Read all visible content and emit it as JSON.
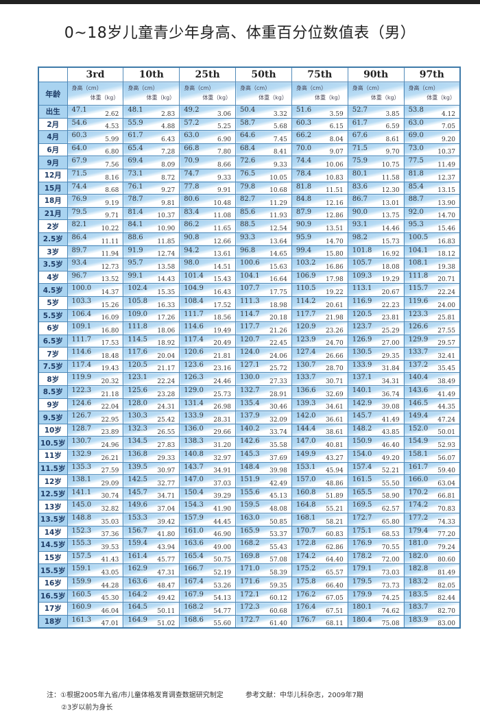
{
  "title": "0~18岁儿童青少年身高、体重百分位数值表（男）",
  "table": {
    "age_header": "年龄",
    "percentiles": [
      "3rd",
      "10th",
      "25th",
      "50th",
      "75th",
      "90th",
      "97th"
    ],
    "height_label": "身高（cm）",
    "weight_label": "体重（kg）",
    "rows": [
      [
        "出生",
        "47.1",
        "2.62",
        "48.1",
        "2.83",
        "49.2",
        "3.06",
        "50.4",
        "3.32",
        "51.6",
        "3.59",
        "52.7",
        "3.85",
        "53.8",
        "4.12"
      ],
      [
        "2月",
        "54.6",
        "4.53",
        "55.9",
        "4.88",
        "57.2",
        "5.25",
        "58.7",
        "5.68",
        "60.3",
        "6.15",
        "61.7",
        "6.59",
        "63.0",
        "7.05"
      ],
      [
        "4月",
        "60.3",
        "5.99",
        "61.7",
        "6.43",
        "63.0",
        "6.90",
        "64.6",
        "7.45",
        "66.2",
        "8.04",
        "67.6",
        "8.61",
        "69.0",
        "9.20"
      ],
      [
        "6月",
        "64.0",
        "6.80",
        "65.4",
        "7.28",
        "66.8",
        "7.80",
        "68.4",
        "8.41",
        "70.0",
        "9.07",
        "71.5",
        "9.70",
        "73.0",
        "10.37"
      ],
      [
        "9月",
        "67.9",
        "7.56",
        "69.4",
        "8.09",
        "70.9",
        "8.66",
        "72.6",
        "9.33",
        "74.4",
        "10.06",
        "75.9",
        "10.75",
        "77.5",
        "11.49"
      ],
      [
        "12月",
        "71.5",
        "8.16",
        "73.1",
        "8.72",
        "74.7",
        "9.33",
        "76.5",
        "10.05",
        "78.4",
        "10.83",
        "80.1",
        "11.58",
        "81.8",
        "12.37"
      ],
      [
        "15月",
        "74.4",
        "8.68",
        "76.1",
        "9.27",
        "77.8",
        "9.91",
        "79.8",
        "10.68",
        "81.8",
        "11.51",
        "83.6",
        "12.30",
        "85.4",
        "13.15"
      ],
      [
        "18月",
        "76.9",
        "9.19",
        "78.7",
        "9.81",
        "80.6",
        "10.48",
        "82.7",
        "11.29",
        "84.8",
        "12.16",
        "86.7",
        "13.01",
        "88.7",
        "13.90"
      ],
      [
        "21月",
        "79.5",
        "9.71",
        "81.4",
        "10.37",
        "83.4",
        "11.08",
        "85.6",
        "11.93",
        "87.9",
        "12.86",
        "90.0",
        "13.75",
        "92.0",
        "14.70"
      ],
      [
        "2岁",
        "82.1",
        "10.22",
        "84.1",
        "10.90",
        "86.2",
        "11.65",
        "88.5",
        "12.54",
        "90.9",
        "13.51",
        "93.1",
        "14.46",
        "95.3",
        "15.46"
      ],
      [
        "2.5岁",
        "86.4",
        "11.11",
        "88.6",
        "11.85",
        "90.8",
        "12.66",
        "93.3",
        "13.64",
        "95.9",
        "14.70",
        "98.2",
        "15.73",
        "100.5",
        "16.83"
      ],
      [
        "3岁",
        "89.7",
        "11.94",
        "91.9",
        "12.74",
        "94.2",
        "13.61",
        "96.8",
        "14.65",
        "99.4",
        "15.80",
        "101.8",
        "16.92",
        "104.1",
        "18.12"
      ],
      [
        "3.5岁",
        "93.4",
        "12.73",
        "95.7",
        "13.58",
        "98.0",
        "14.51",
        "100.6",
        "15.63",
        "103.2",
        "16.86",
        "105.7",
        "18.08",
        "108.1",
        "19.38"
      ],
      [
        "4岁",
        "96.7",
        "13.52",
        "99.1",
        "14.43",
        "101.4",
        "15.43",
        "104.1",
        "16.64",
        "106.9",
        "17.98",
        "109.3",
        "19.29",
        "111.8",
        "20.71"
      ],
      [
        "4.5岁",
        "100.0",
        "14.37",
        "102.4",
        "15.35",
        "104.9",
        "16.43",
        "107.7",
        "17.75",
        "110.5",
        "19.22",
        "113.1",
        "20.67",
        "115.7",
        "22.24"
      ],
      [
        "5岁",
        "103.3",
        "15.26",
        "105.8",
        "16.33",
        "108.4",
        "17.52",
        "111.3",
        "18.98",
        "114.2",
        "20.61",
        "116.9",
        "22.23",
        "119.6",
        "24.00"
      ],
      [
        "5.5岁",
        "106.4",
        "16.09",
        "109.0",
        "17.26",
        "111.7",
        "18.56",
        "114.7",
        "20.18",
        "117.7",
        "21.98",
        "120.5",
        "23.81",
        "123.3",
        "25.81"
      ],
      [
        "6岁",
        "109.1",
        "16.80",
        "111.8",
        "18.06",
        "114.6",
        "19.49",
        "117.7",
        "21.26",
        "120.9",
        "23.26",
        "123.7",
        "25.29",
        "126.6",
        "27.55"
      ],
      [
        "6.5岁",
        "111.7",
        "17.53",
        "114.5",
        "18.92",
        "117.4",
        "20.49",
        "120.7",
        "22.45",
        "123.9",
        "24.70",
        "126.9",
        "27.00",
        "129.9",
        "29.57"
      ],
      [
        "7岁",
        "114.6",
        "18.48",
        "117.6",
        "20.04",
        "120.6",
        "21.81",
        "124.0",
        "24.06",
        "127.4",
        "26.66",
        "130.5",
        "29.35",
        "133.7",
        "32.41"
      ],
      [
        "7.5岁",
        "117.4",
        "19.43",
        "120.5",
        "21.17",
        "123.6",
        "23.16",
        "127.1",
        "25.72",
        "130.7",
        "28.70",
        "133.9",
        "31.84",
        "137.2",
        "35.45"
      ],
      [
        "8岁",
        "119.9",
        "20.32",
        "123.1",
        "22.24",
        "126.3",
        "24.46",
        "130.0",
        "27.33",
        "133.7",
        "30.71",
        "137.1",
        "34.31",
        "140.4",
        "38.49"
      ],
      [
        "8.5岁",
        "122.3",
        "21.18",
        "125.6",
        "23.28",
        "129.0",
        "25.73",
        "132.7",
        "28.91",
        "136.6",
        "32.69",
        "140.1",
        "36.74",
        "143.6",
        "41.49"
      ],
      [
        "9岁",
        "124.6",
        "22.04",
        "128.0",
        "24.31",
        "131.4",
        "26.98",
        "135.4",
        "30.46",
        "139.3",
        "34.61",
        "142.9",
        "39.08",
        "146.5",
        "44.35"
      ],
      [
        "9.5岁",
        "126.7",
        "22.95",
        "130.3",
        "25.42",
        "133.9",
        "28.31",
        "137.9",
        "32.09",
        "142.0",
        "36.61",
        "145.7",
        "41.49",
        "149.4",
        "47.24"
      ],
      [
        "10岁",
        "128.7",
        "23.89",
        "132.3",
        "26.55",
        "136.0",
        "29.66",
        "140.2",
        "33.74",
        "144.4",
        "38.61",
        "148.2",
        "43.85",
        "152.0",
        "50.01"
      ],
      [
        "10.5岁",
        "130.7",
        "24.96",
        "134.5",
        "27.83",
        "138.3",
        "31.20",
        "142.6",
        "35.58",
        "147.0",
        "40.81",
        "150.9",
        "46.40",
        "154.9",
        "52.93"
      ],
      [
        "11岁",
        "132.9",
        "26.21",
        "136.8",
        "29.33",
        "140.8",
        "32.97",
        "145.3",
        "37.69",
        "149.9",
        "43.27",
        "154.0",
        "49.20",
        "158.1",
        "56.07"
      ],
      [
        "11.5岁",
        "135.3",
        "27.59",
        "139.5",
        "30.97",
        "143.7",
        "34.91",
        "148.4",
        "39.98",
        "153.1",
        "45.94",
        "157.4",
        "52.21",
        "161.7",
        "59.40"
      ],
      [
        "12岁",
        "138.1",
        "29.09",
        "142.5",
        "32.77",
        "147.0",
        "37.03",
        "151.9",
        "42.49",
        "157.0",
        "48.86",
        "161.5",
        "55.50",
        "166.0",
        "63.04"
      ],
      [
        "12.5岁",
        "141.1",
        "30.74",
        "145.7",
        "34.71",
        "150.4",
        "39.29",
        "155.6",
        "45.13",
        "160.8",
        "51.89",
        "165.5",
        "58.90",
        "170.2",
        "66.81"
      ],
      [
        "13岁",
        "145.0",
        "32.82",
        "149.6",
        "37.04",
        "154.3",
        "41.90",
        "159.5",
        "48.08",
        "164.8",
        "55.21",
        "169.5",
        "62.57",
        "174.2",
        "70.83"
      ],
      [
        "13.5岁",
        "148.8",
        "35.03",
        "153.3",
        "39.42",
        "157.9",
        "44.45",
        "163.0",
        "50.85",
        "168.1",
        "58.21",
        "172.7",
        "65.80",
        "177.2",
        "74.33"
      ],
      [
        "14岁",
        "152.3",
        "37.36",
        "156.7",
        "41.80",
        "161.0",
        "46.90",
        "165.9",
        "53.37",
        "170.7",
        "60.83",
        "175.1",
        "68.53",
        "179.4",
        "77.20"
      ],
      [
        "14.5岁",
        "155.3",
        "39.53",
        "159.4",
        "43.94",
        "163.6",
        "49.00",
        "168.2",
        "55.43",
        "172.8",
        "62.86",
        "176.9",
        "70.55",
        "181.0",
        "79.24"
      ],
      [
        "15岁",
        "157.5",
        "41.43",
        "161.4",
        "45.77",
        "165.4",
        "50.75",
        "169.8",
        "57.08",
        "174.2",
        "64.40",
        "178.2",
        "72.00",
        "182.0",
        "80.60"
      ],
      [
        "15.5岁",
        "159.1",
        "43.05",
        "162.9",
        "47.31",
        "166.7",
        "52.19",
        "171.0",
        "58.39",
        "175.2",
        "65.57",
        "179.1",
        "73.03",
        "182.8",
        "81.49"
      ],
      [
        "16岁",
        "159.9",
        "44.28",
        "163.6",
        "48.47",
        "167.4",
        "53.26",
        "171.6",
        "59.35",
        "175.8",
        "66.40",
        "179.5",
        "73.73",
        "183.2",
        "82.05"
      ],
      [
        "16.5岁",
        "160.5",
        "45.30",
        "164.2",
        "49.42",
        "167.9",
        "54.13",
        "172.1",
        "60.12",
        "176.2",
        "67.05",
        "179.9",
        "74.25",
        "183.5",
        "82.44"
      ],
      [
        "17岁",
        "160.9",
        "46.04",
        "164.5",
        "50.11",
        "168.2",
        "54.77",
        "172.3",
        "60.68",
        "176.4",
        "67.51",
        "180.1",
        "74.62",
        "183.7",
        "82.70"
      ],
      [
        "18岁",
        "161.3",
        "47.01",
        "164.9",
        "51.02",
        "168.6",
        "55.60",
        "172.7",
        "61.40",
        "176.7",
        "68.11",
        "180.4",
        "75.08",
        "183.9",
        "83.00"
      ]
    ]
  },
  "notes": {
    "note1": "注：①根据2005年九省/市儿童体格发育调查数据研究制定",
    "note2": "②3岁以前为身长",
    "reference": "参考文献：中华儿科杂志，2009年7期"
  },
  "colors": {
    "cell_blue": "#9fcdef",
    "border": "#3d79a8",
    "age_text": "#1e3c66"
  }
}
